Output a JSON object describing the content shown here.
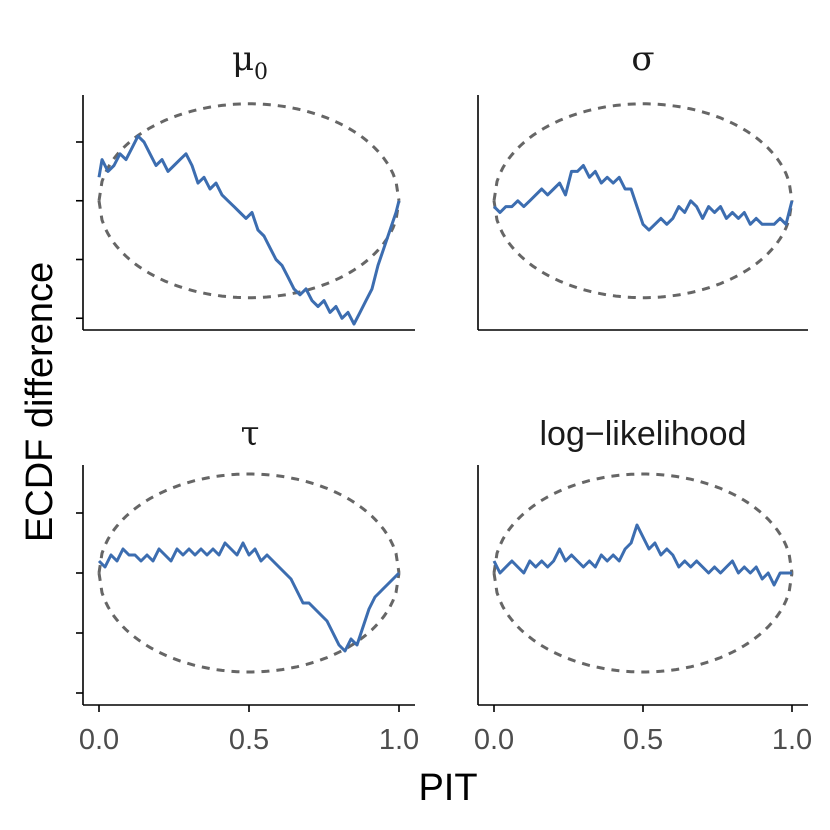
{
  "chart_data": {
    "type": "line",
    "xlabel": "PIT",
    "ylabel": "ECDF difference",
    "xlim": [
      0,
      1
    ],
    "x_ticks": [
      "0.0",
      "0.5",
      "1.0"
    ],
    "grid": false,
    "colors": {
      "ecdf_line": "#3c6db0",
      "band": "#666666"
    },
    "panels": [
      {
        "title": "μ",
        "title_subscript": "0",
        "ylim": [
          -0.22,
          0.18
        ],
        "y_ticks": [
          -0.2,
          -0.1,
          0.0,
          0.1
        ],
        "band_halfwidth": 0.165,
        "series": {
          "x": [
            0.0,
            0.01,
            0.03,
            0.05,
            0.07,
            0.09,
            0.11,
            0.13,
            0.15,
            0.17,
            0.19,
            0.21,
            0.23,
            0.25,
            0.27,
            0.29,
            0.31,
            0.33,
            0.35,
            0.37,
            0.39,
            0.41,
            0.43,
            0.45,
            0.47,
            0.49,
            0.51,
            0.53,
            0.55,
            0.57,
            0.59,
            0.61,
            0.63,
            0.65,
            0.67,
            0.69,
            0.71,
            0.73,
            0.75,
            0.77,
            0.79,
            0.81,
            0.83,
            0.85,
            0.87,
            0.89,
            0.91,
            0.93,
            0.95,
            0.97,
            0.99,
            1.0
          ],
          "y": [
            0.04,
            0.07,
            0.05,
            0.06,
            0.08,
            0.07,
            0.09,
            0.11,
            0.1,
            0.08,
            0.06,
            0.07,
            0.05,
            0.06,
            0.07,
            0.08,
            0.06,
            0.03,
            0.04,
            0.02,
            0.03,
            0.01,
            0.0,
            -0.01,
            -0.02,
            -0.03,
            -0.02,
            -0.05,
            -0.06,
            -0.08,
            -0.1,
            -0.11,
            -0.13,
            -0.15,
            -0.16,
            -0.15,
            -0.17,
            -0.18,
            -0.17,
            -0.19,
            -0.18,
            -0.2,
            -0.19,
            -0.21,
            -0.19,
            -0.17,
            -0.15,
            -0.11,
            -0.08,
            -0.05,
            -0.02,
            0.0
          ]
        }
      },
      {
        "title": "σ",
        "ylim": [
          -0.22,
          0.18
        ],
        "band_halfwidth": 0.165,
        "series": {
          "x": [
            0.0,
            0.02,
            0.04,
            0.06,
            0.08,
            0.1,
            0.12,
            0.14,
            0.16,
            0.18,
            0.2,
            0.22,
            0.24,
            0.26,
            0.28,
            0.3,
            0.32,
            0.34,
            0.36,
            0.38,
            0.4,
            0.42,
            0.44,
            0.46,
            0.48,
            0.5,
            0.52,
            0.54,
            0.56,
            0.58,
            0.6,
            0.62,
            0.64,
            0.66,
            0.68,
            0.7,
            0.72,
            0.74,
            0.76,
            0.78,
            0.8,
            0.82,
            0.84,
            0.86,
            0.88,
            0.9,
            0.92,
            0.94,
            0.96,
            0.98,
            1.0
          ],
          "y": [
            -0.01,
            -0.02,
            -0.01,
            -0.01,
            0.0,
            -0.01,
            0.0,
            0.01,
            0.02,
            0.01,
            0.02,
            0.03,
            0.01,
            0.05,
            0.05,
            0.06,
            0.04,
            0.05,
            0.03,
            0.04,
            0.03,
            0.04,
            0.02,
            0.02,
            -0.01,
            -0.04,
            -0.05,
            -0.04,
            -0.03,
            -0.04,
            -0.03,
            -0.01,
            -0.02,
            0.0,
            -0.01,
            -0.03,
            -0.01,
            -0.02,
            -0.01,
            -0.03,
            -0.02,
            -0.03,
            -0.02,
            -0.04,
            -0.03,
            -0.04,
            -0.04,
            -0.04,
            -0.03,
            -0.04,
            0.0
          ]
        }
      },
      {
        "title": "τ",
        "ylim": [
          -0.22,
          0.18
        ],
        "y_ticks": [
          -0.2,
          -0.1,
          0.0,
          0.1
        ],
        "band_halfwidth": 0.165,
        "series": {
          "x": [
            0.0,
            0.02,
            0.04,
            0.06,
            0.08,
            0.1,
            0.12,
            0.14,
            0.16,
            0.18,
            0.2,
            0.22,
            0.24,
            0.26,
            0.28,
            0.3,
            0.32,
            0.34,
            0.36,
            0.38,
            0.4,
            0.42,
            0.44,
            0.46,
            0.48,
            0.5,
            0.52,
            0.54,
            0.56,
            0.58,
            0.6,
            0.62,
            0.64,
            0.66,
            0.68,
            0.7,
            0.72,
            0.74,
            0.76,
            0.78,
            0.8,
            0.82,
            0.84,
            0.86,
            0.88,
            0.9,
            0.92,
            0.94,
            0.96,
            0.98,
            1.0
          ],
          "y": [
            0.02,
            0.01,
            0.03,
            0.02,
            0.04,
            0.03,
            0.03,
            0.02,
            0.03,
            0.02,
            0.04,
            0.03,
            0.02,
            0.04,
            0.03,
            0.04,
            0.03,
            0.04,
            0.03,
            0.04,
            0.03,
            0.05,
            0.04,
            0.03,
            0.05,
            0.03,
            0.04,
            0.02,
            0.03,
            0.02,
            0.01,
            0.0,
            -0.01,
            -0.03,
            -0.05,
            -0.05,
            -0.06,
            -0.07,
            -0.08,
            -0.1,
            -0.12,
            -0.13,
            -0.11,
            -0.12,
            -0.09,
            -0.06,
            -0.04,
            -0.03,
            -0.02,
            -0.01,
            0.0
          ]
        }
      },
      {
        "title": "log−likelihood",
        "ylim": [
          -0.22,
          0.18
        ],
        "band_halfwidth": 0.165,
        "series": {
          "x": [
            0.0,
            0.02,
            0.04,
            0.06,
            0.08,
            0.1,
            0.12,
            0.14,
            0.16,
            0.18,
            0.2,
            0.22,
            0.24,
            0.26,
            0.28,
            0.3,
            0.32,
            0.34,
            0.36,
            0.38,
            0.4,
            0.42,
            0.44,
            0.46,
            0.48,
            0.5,
            0.52,
            0.54,
            0.56,
            0.58,
            0.6,
            0.62,
            0.64,
            0.66,
            0.68,
            0.7,
            0.72,
            0.74,
            0.76,
            0.78,
            0.8,
            0.82,
            0.84,
            0.86,
            0.88,
            0.9,
            0.92,
            0.94,
            0.96,
            0.98,
            1.0
          ],
          "y": [
            0.02,
            0.0,
            0.01,
            0.02,
            0.01,
            0.0,
            0.02,
            0.01,
            0.02,
            0.01,
            0.02,
            0.04,
            0.02,
            0.03,
            0.02,
            0.01,
            0.02,
            0.01,
            0.03,
            0.02,
            0.03,
            0.02,
            0.04,
            0.05,
            0.08,
            0.06,
            0.04,
            0.05,
            0.03,
            0.04,
            0.03,
            0.01,
            0.02,
            0.01,
            0.02,
            0.01,
            0.0,
            0.01,
            0.0,
            0.01,
            0.02,
            0.0,
            0.01,
            0.0,
            0.01,
            -0.01,
            0.0,
            -0.02,
            0.0,
            0.0,
            0.0
          ]
        }
      }
    ]
  }
}
